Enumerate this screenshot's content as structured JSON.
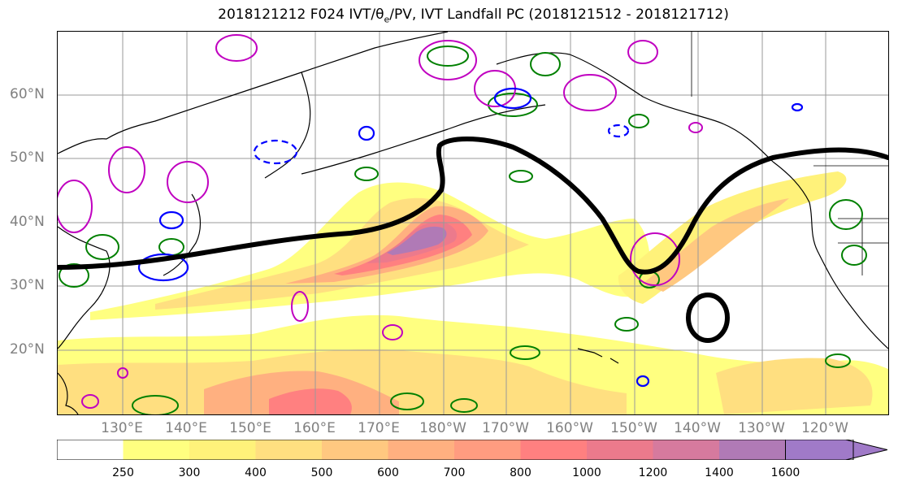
{
  "title": {
    "prefix": "2018121212 F024 IVT/θ",
    "sub": "e",
    "suffix": "/PV, IVT Landfall PC (2018121512 - 2018121712)"
  },
  "lat_labels": [
    "60°N",
    "50°N",
    "40°N",
    "30°N",
    "20°N"
  ],
  "lon_labels": [
    "130°E",
    "140°E",
    "150°E",
    "160°E",
    "170°E",
    "180°W",
    "170°W",
    "160°W",
    "150°W",
    "140°W",
    "130°W",
    "120°W"
  ],
  "colorbar": {
    "levels": [
      "250",
      "300",
      "400",
      "500",
      "600",
      "700",
      "800",
      "1000",
      "1200",
      "1400",
      "1600"
    ],
    "colors": [
      "#ffffff",
      "#ffff80",
      "#fff27a",
      "#ffdf80",
      "#ffc880",
      "#ffb080",
      "#ff9c80",
      "#ff8080",
      "#ec7a8c",
      "#d67a9e",
      "#b07ab6",
      "#a07ac8"
    ]
  },
  "legend_colors": {
    "ivt_landfall_pc": "#000000",
    "theta_e": "#008000",
    "pv": "#c000c0",
    "negative_contour": "#0000ff"
  }
}
